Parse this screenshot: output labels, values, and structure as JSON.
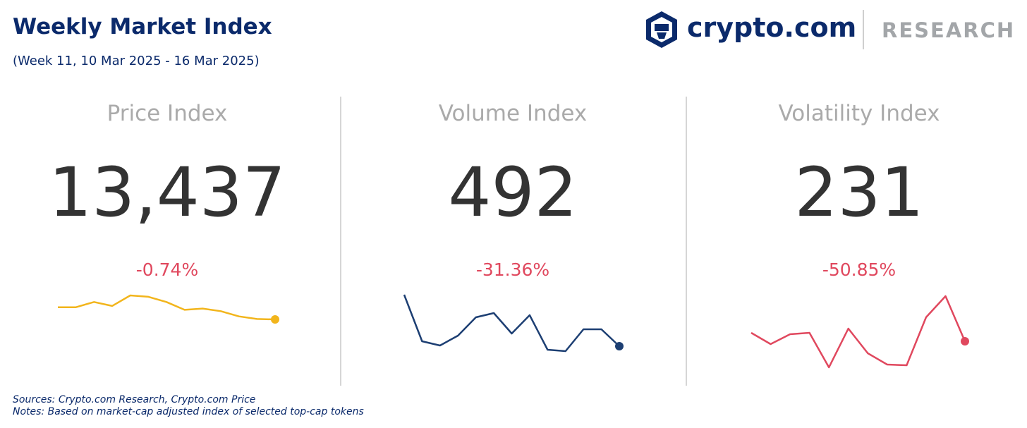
{
  "header": {
    "title": "Weekly Market Index",
    "subtitle": "(Week 11, 10 Mar 2025 - 16 Mar 2025)",
    "brand": "crypto.com",
    "brand_section": "RESEARCH"
  },
  "panels": [
    {
      "title": "Price Index",
      "value": "13,437",
      "change": "-0.74%",
      "color": "#f2b51c",
      "sparkline": [
        13530,
        13530,
        13570,
        13540,
        13620,
        13610,
        13570,
        13510,
        13520,
        13500,
        13460,
        13440,
        13437
      ]
    },
    {
      "title": "Volume Index",
      "value": "492",
      "change": "-31.36%",
      "color": "#1d3f73",
      "sparkline": [
        711,
        513,
        495,
        537,
        615,
        633,
        546,
        624,
        477,
        471,
        564,
        564,
        492
      ]
    },
    {
      "title": "Volatility Index",
      "value": "231",
      "change": "-50.85%",
      "color": "#e0485e",
      "sparkline": [
        255,
        223,
        251,
        255,
        157,
        267,
        197,
        165,
        163,
        299,
        359,
        231
      ]
    }
  ],
  "footer": {
    "sources": "Sources: Crypto.com Research,  Crypto.com Price",
    "notes": "Notes: Based on market-cap adjusted index of selected top-cap tokens"
  }
}
